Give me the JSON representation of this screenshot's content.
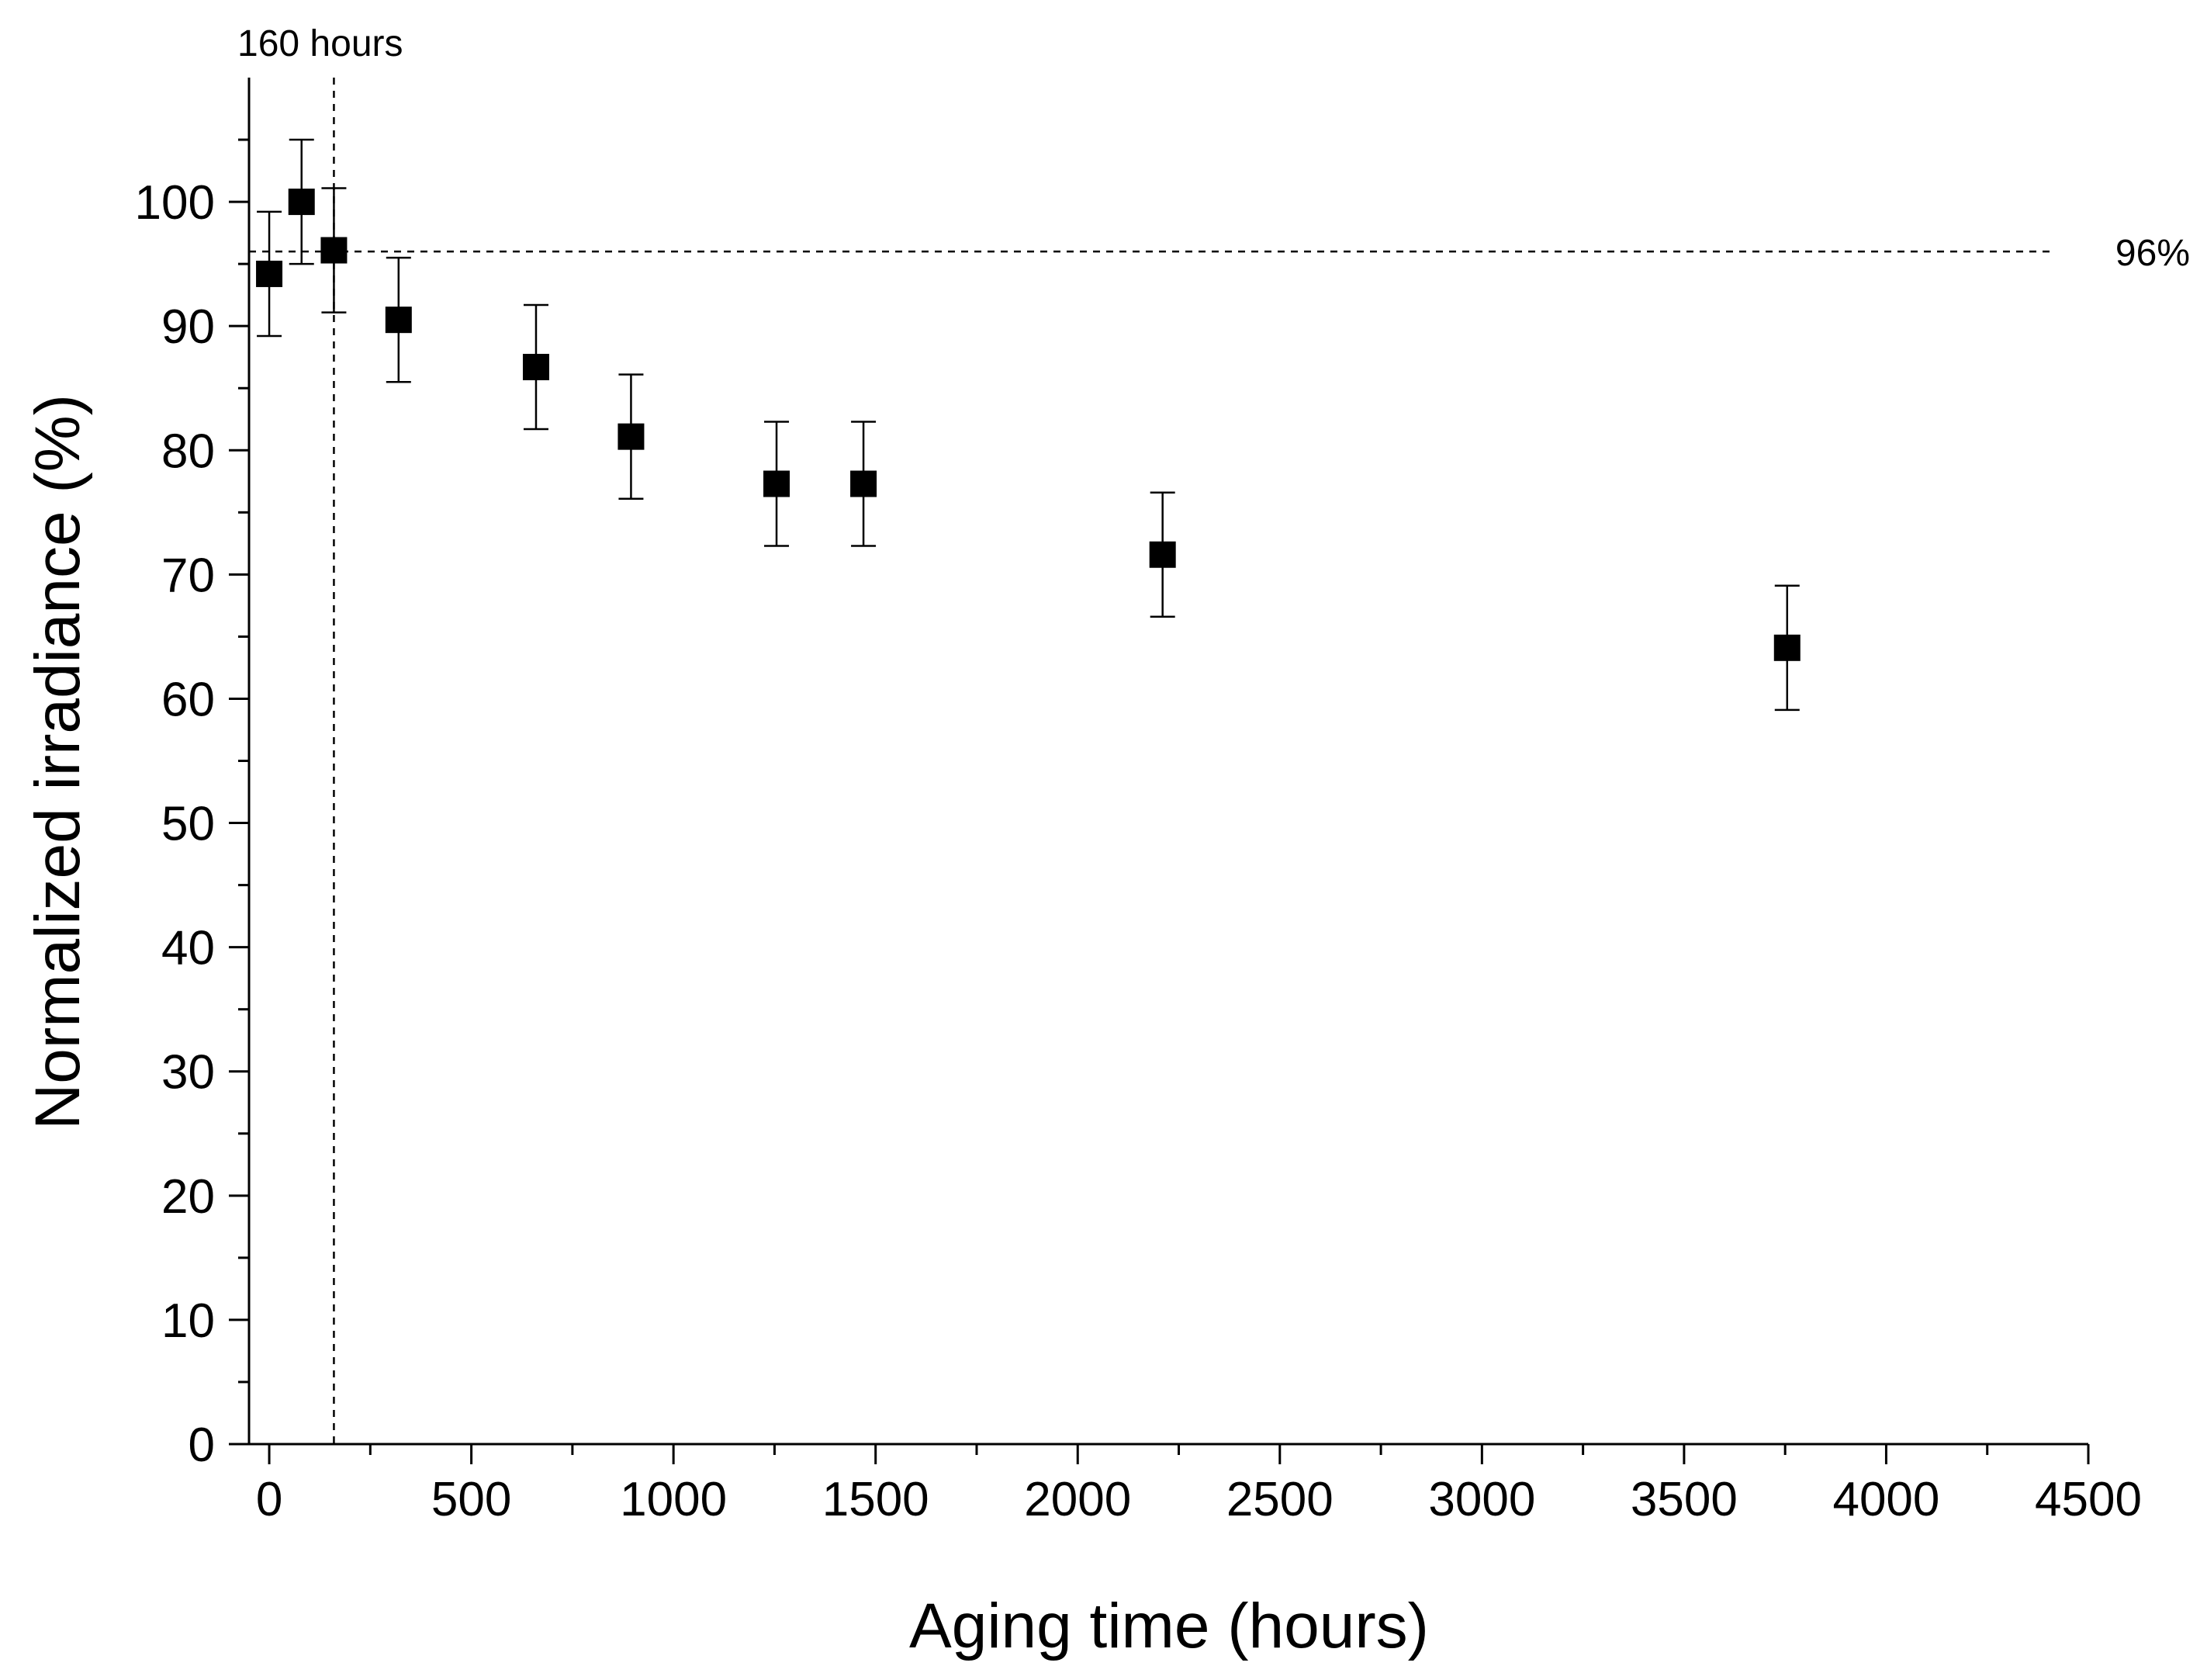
{
  "chart_data": {
    "type": "scatter",
    "title": "",
    "xlabel": "Aging time (hours)",
    "ylabel": "Normalized irradiance (%)",
    "xlim": [
      -50,
      4500
    ],
    "ylim": [
      0,
      110
    ],
    "xticks": [
      0,
      500,
      1000,
      1500,
      2000,
      2500,
      3000,
      3500,
      4000,
      4500
    ],
    "yticks": [
      0,
      10,
      20,
      30,
      40,
      50,
      60,
      70,
      80,
      90,
      100
    ],
    "grid": false,
    "legend": "none",
    "marker": "square",
    "color": "#000000",
    "series": [
      {
        "x": [
          0,
          80,
          160,
          320,
          660,
          895,
          1255,
          1470,
          2210,
          3755
        ],
        "y": [
          94.2,
          100,
          96.1,
          90.5,
          86.7,
          81.1,
          77.3,
          77.3,
          71.6,
          64.1
        ],
        "error": [
          5,
          5,
          5,
          5,
          5,
          5,
          5,
          5,
          5,
          5
        ]
      }
    ],
    "reference_lines": [
      {
        "orientation": "vertical",
        "value": 160,
        "label": "160 hours"
      },
      {
        "orientation": "horizontal",
        "value": 96,
        "label": "96%"
      }
    ]
  }
}
